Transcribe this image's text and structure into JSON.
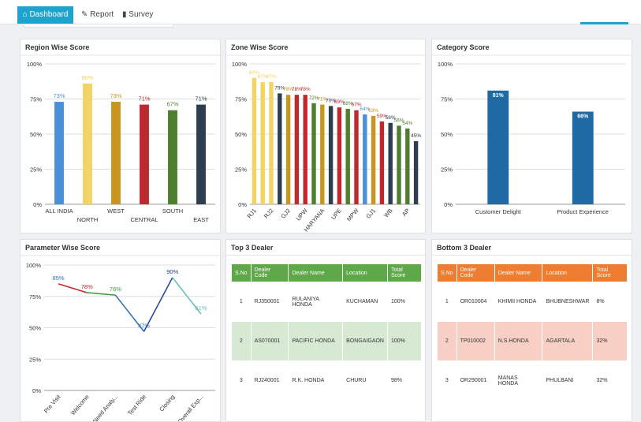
{
  "nav": [
    "Dashboard",
    "Report",
    "Survey"
  ],
  "chart_data": [
    {
      "type": "bar",
      "title": "Region Wise Score",
      "categories": [
        "ALL INDIA",
        "NORTH",
        "WEST",
        "CENTRAL",
        "SOUTH",
        "EAST"
      ],
      "values": [
        73,
        86,
        73,
        71,
        67,
        71
      ],
      "value_labels": [
        "73%",
        "86%",
        "73%",
        "71%",
        "67%",
        "71%"
      ],
      "colors": [
        "#4a90d9",
        "#f2d366",
        "#c8961e",
        "#c0282d",
        "#4e7f2e",
        "#2c3e50"
      ],
      "ylim": [
        0,
        100
      ],
      "yticks": [
        {
          "value": 0,
          "label": "0%"
        },
        {
          "value": 25,
          "label": "25%"
        },
        {
          "value": 50,
          "label": "50%"
        },
        {
          "value": 75,
          "label": "75%"
        },
        {
          "value": 100,
          "label": "100%"
        }
      ],
      "grid": true
    },
    {
      "type": "bar",
      "title": "Zone Wise Score",
      "categories": [
        "RJ1",
        null,
        "RJ2",
        null,
        "GJ2",
        null,
        "UPW",
        null,
        "HARYANA",
        null,
        "UPE",
        null,
        "MPW",
        null,
        "GJ1",
        null,
        "WB",
        null,
        "AP",
        null
      ],
      "values": [
        90,
        87,
        87,
        79,
        78,
        78,
        78,
        72,
        71,
        70,
        69,
        68,
        67,
        64,
        63,
        59,
        58,
        56,
        54,
        45
      ],
      "value_labels": [
        "90%",
        "87%",
        "87%",
        "79%",
        "78%",
        "78%",
        "78%",
        "72%",
        "71%",
        "70%",
        "69%",
        "68%",
        "67%",
        "64%",
        "63%",
        "59%",
        "58%",
        "56%",
        "54%",
        "45%"
      ],
      "colors": [
        "#f2d366",
        "#f2d366",
        "#f2d366",
        "#2c3e50",
        "#c8961e",
        "#c0282d",
        "#c0282d",
        "#4e7f2e",
        "#c8961e",
        "#2c3e50",
        "#c0282d",
        "#4e7f2e",
        "#c0282d",
        "#4a90d9",
        "#c8961e",
        "#c0282d",
        "#2c3e50",
        "#4e7f2e",
        "#4e7f2e",
        "#2c3e50"
      ],
      "ylim": [
        0,
        100
      ],
      "yticks": [
        {
          "value": 0,
          "label": "0%"
        },
        {
          "value": 25,
          "label": "25%"
        },
        {
          "value": 50,
          "label": "50%"
        },
        {
          "value": 75,
          "label": "75%"
        },
        {
          "value": 100,
          "label": "100%"
        }
      ],
      "grid": true
    },
    {
      "type": "bar",
      "title": "Category Score",
      "categories": [
        "Customer Delight",
        "Product Experience"
      ],
      "values": [
        81,
        66
      ],
      "value_labels": [
        "81%",
        "66%"
      ],
      "colors": [
        "#1f6aa5",
        "#1f6aa5"
      ],
      "ylim": [
        0,
        100
      ],
      "yticks": [
        {
          "value": 0,
          "label": "0%"
        },
        {
          "value": 25,
          "label": "25%"
        },
        {
          "value": 50,
          "label": "50%"
        },
        {
          "value": 75,
          "label": "75%"
        },
        {
          "value": 100,
          "label": "100%"
        }
      ],
      "grid": true
    },
    {
      "type": "line",
      "title": "Parameter Wise Score",
      "categories": [
        "Pre Visit",
        "Welcome",
        "Need Analy...",
        "Test Ride",
        "Closing",
        "Overall Exp..."
      ],
      "values": [
        85,
        78,
        76,
        47,
        90,
        61
      ],
      "value_labels": [
        "85%",
        "78%",
        "76%",
        "47%",
        "90%",
        "61%"
      ],
      "colors": [
        "#2a6ebb",
        "#c0282d",
        "#3a9a3a",
        "#2a6ebb",
        "#1f3f99",
        "#66bbbb"
      ],
      "ylim": [
        0,
        100
      ],
      "yticks": [
        {
          "value": 0,
          "label": "0%"
        },
        {
          "value": 25,
          "label": "25%"
        },
        {
          "value": 50,
          "label": "50%"
        },
        {
          "value": 75,
          "label": "75%"
        },
        {
          "value": 100,
          "label": "100%"
        }
      ],
      "grid": true
    }
  ],
  "top_dealer": {
    "title": "Top 3 Dealer",
    "columns": [
      "S.No",
      "Dealer Code",
      "Dealer Name",
      "Location",
      "Total Score"
    ],
    "rows": [
      [
        "1",
        "RJ350001",
        "RULANIYA HONDA",
        "KUCHAMAN",
        "100%"
      ],
      [
        "2",
        "AS070001",
        "PACIFIC HONDA",
        "BONGAIGAON",
        "100%"
      ],
      [
        "3",
        "RJ240001",
        "R.K. HONDA",
        "CHURU",
        "98%"
      ]
    ]
  },
  "bottom_dealer": {
    "title": "Bottom 3 Dealer",
    "columns": [
      "S.No",
      "Dealer Code",
      "Dealer Name",
      "Location",
      "Total Score"
    ],
    "rows": [
      [
        "1",
        "OR010004",
        "KHIMII HONDA",
        "BHUBNESHWAR",
        "8%"
      ],
      [
        "2",
        "TP010002",
        "N.S.HONDA",
        "AGARTALA",
        "32%"
      ],
      [
        "3",
        "OR290001",
        "MANAS HONDA",
        "PHULBANI",
        "32%"
      ]
    ]
  }
}
